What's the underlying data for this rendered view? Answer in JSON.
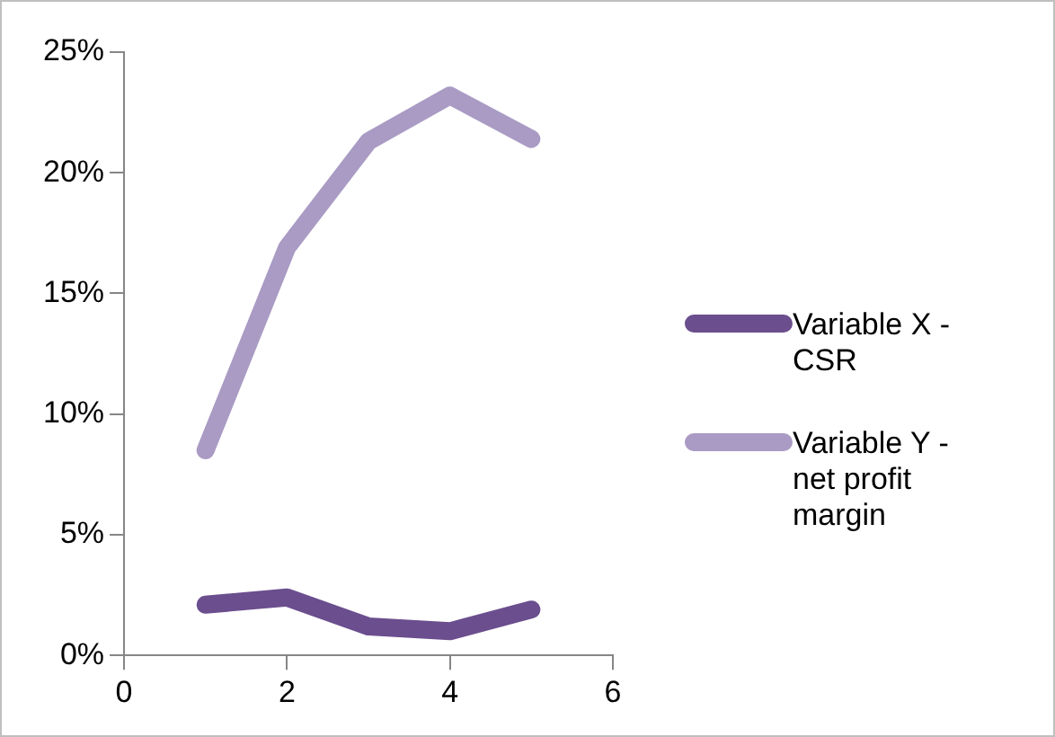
{
  "chart_data": {
    "type": "line",
    "x": [
      1,
      2,
      3,
      4,
      5
    ],
    "series": [
      {
        "name": "Variable X - CSR",
        "color": "#6b4e8e",
        "values": [
          2.1,
          2.4,
          1.2,
          1.0,
          1.9
        ]
      },
      {
        "name": "Variable Y - net profit margin",
        "color": "#a99bc4",
        "values": [
          8.5,
          16.9,
          21.3,
          23.2,
          21.4
        ]
      }
    ],
    "xlim": [
      0,
      6
    ],
    "xticks": [
      0,
      2,
      4,
      6
    ],
    "ylim": [
      0,
      25
    ],
    "yticks": [
      {
        "value": 0,
        "label": "0%"
      },
      {
        "value": 5,
        "label": "5%"
      },
      {
        "value": 10,
        "label": "10%"
      },
      {
        "value": 15,
        "label": "15%"
      },
      {
        "value": 20,
        "label": "20%"
      },
      {
        "value": 25,
        "label": "25%"
      }
    ],
    "grid": false,
    "legend": "right",
    "marker": "none",
    "line_style": "solid"
  }
}
